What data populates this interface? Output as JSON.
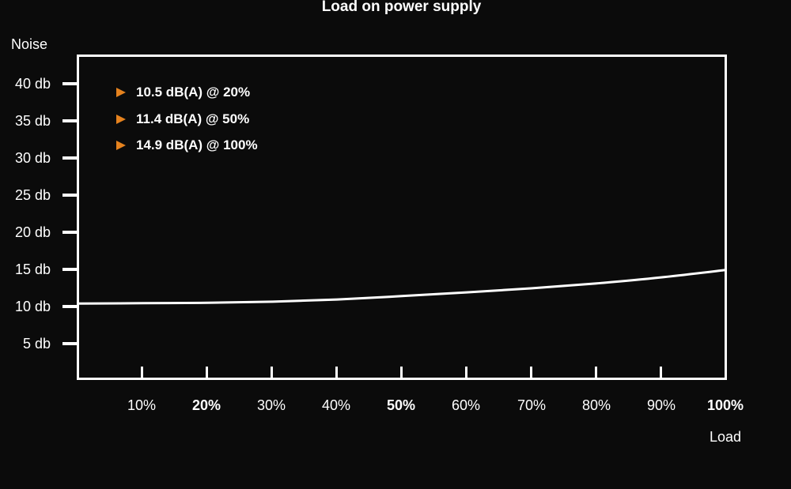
{
  "title": "Load on power supply",
  "y_axis": {
    "label": "Noise",
    "ticks": [
      "40 db",
      "35 db",
      "30 db",
      "25 db",
      "20 db",
      "15 db",
      "10 db",
      "5 db"
    ]
  },
  "x_axis": {
    "label": "Load",
    "ticks": [
      "10%",
      "20%",
      "30%",
      "40%",
      "50%",
      "60%",
      "70%",
      "80%",
      "90%",
      "100%"
    ]
  },
  "callouts": [
    "10.5 dB(A) @ 20%",
    "11.4 dB(A) @ 50%",
    "14.9 dB(A) @ 100%"
  ],
  "colors": {
    "background": "#0b0b0b",
    "text": "#ffffff",
    "line": "#ffffff",
    "accent": "#e5821e"
  },
  "chart_data": {
    "type": "line",
    "title": "Load on power supply",
    "xlabel": "Load",
    "ylabel": "Noise",
    "x": [
      0,
      10,
      20,
      30,
      40,
      50,
      60,
      70,
      80,
      90,
      100
    ],
    "values": [
      10.4,
      10.45,
      10.5,
      10.65,
      10.95,
      11.4,
      11.9,
      12.45,
      13.1,
      13.9,
      14.9
    ],
    "x_tick_labels": [
      "10%",
      "20%",
      "30%",
      "40%",
      "50%",
      "60%",
      "70%",
      "80%",
      "90%",
      "100%"
    ],
    "y_tick_labels": [
      "40 db",
      "35 db",
      "30 db",
      "25 db",
      "20 db",
      "15 db",
      "10 db",
      "5 db"
    ],
    "y_tick_values": [
      40,
      35,
      30,
      25,
      20,
      15,
      10,
      5
    ],
    "key_points": [
      {
        "load_pct": 20,
        "noise_db": 10.5,
        "label": "10.5 dB(A) @ 20%"
      },
      {
        "load_pct": 50,
        "noise_db": 11.4,
        "label": "11.4 dB(A) @ 50%"
      },
      {
        "load_pct": 100,
        "noise_db": 14.9,
        "label": "14.9 dB(A) @ 100%"
      }
    ],
    "xlim": [
      0,
      100
    ],
    "ylim": [
      0,
      43.6
    ],
    "grid": false,
    "legend_position": "top-left-inside",
    "line_color": "#ffffff",
    "marker_color": "#e5821e"
  }
}
